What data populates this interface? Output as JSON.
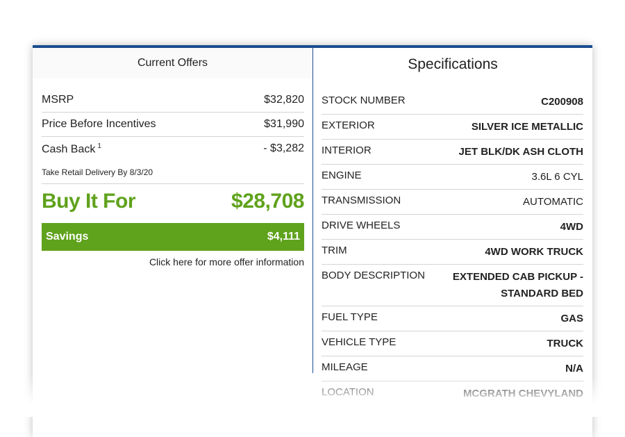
{
  "offers": {
    "header": "Current Offers",
    "rows": [
      {
        "label": "MSRP",
        "value": "$32,820"
      },
      {
        "label": "Price Before Incentives",
        "value": "$31,990"
      },
      {
        "label": "Cash Back",
        "footnote": "1",
        "value": "- $3,282"
      }
    ],
    "delivery_note": "Take Retail Delivery By 8/3/20",
    "buy_label": "Buy It For",
    "buy_price": "$28,708",
    "savings_label": "Savings",
    "savings_value": "$4,111",
    "more_link": "Click here for more offer information"
  },
  "specs": {
    "header": "Specifications",
    "rows": [
      {
        "label": "STOCK NUMBER",
        "value": "C200908"
      },
      {
        "label": "EXTERIOR",
        "value": "SILVER ICE METALLIC"
      },
      {
        "label": "INTERIOR",
        "value": "JET BLK/DK ASH CLOTH"
      },
      {
        "label": "ENGINE",
        "value": "3.6L 6 CYL"
      },
      {
        "label": "TRANSMISSION",
        "value": "AUTOMATIC"
      },
      {
        "label": "DRIVE WHEELS",
        "value": "4WD"
      },
      {
        "label": "TRIM",
        "value": "4WD WORK TRUCK"
      },
      {
        "label": "BODY DESCRIPTION",
        "value": "EXTENDED CAB PICKUP - STANDARD BED"
      },
      {
        "label": "FUEL TYPE",
        "value": "GAS"
      },
      {
        "label": "VEHICLE TYPE",
        "value": "TRUCK"
      },
      {
        "label": "MILEAGE",
        "value": "N/A"
      },
      {
        "label": "LOCATION",
        "value": "MCGRATH CHEVYLAND"
      }
    ]
  },
  "colors": {
    "accent_blue": "#1a4d8f",
    "savings_green": "#5fa21c"
  }
}
